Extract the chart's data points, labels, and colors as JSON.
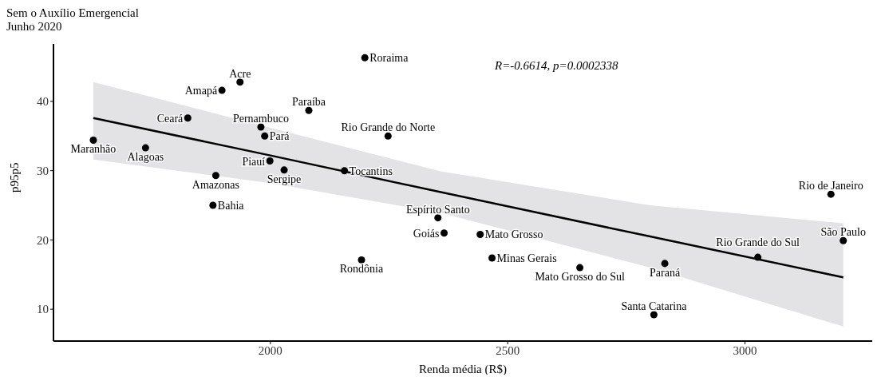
{
  "chart_data": {
    "type": "scatter",
    "title": "Sem o Auxílio Emergencial",
    "subtitle": "Junho 2020",
    "xlabel": "Renda média (R$)",
    "ylabel": "p95p5",
    "x": [
      1627,
      1737,
      1826,
      1898,
      1936,
      1980,
      1988,
      1999,
      2029,
      1885,
      1879,
      2081,
      2199,
      2248,
      2156,
      2353,
      2366,
      2442,
      2467,
      2192,
      2652,
      2831,
      2808,
      3027,
      3207,
      3181
    ],
    "series": [
      {
        "color": "#000000",
        "marker": "circle",
        "values": [
          34.4,
          33.3,
          37.6,
          41.6,
          42.8,
          36.3,
          35.0,
          31.4,
          30.1,
          29.3,
          25.0,
          38.7,
          46.3,
          35.0,
          30.0,
          23.2,
          21.0,
          20.8,
          17.4,
          17.1,
          16.0,
          16.6,
          9.2,
          17.5,
          19.9,
          26.6
        ]
      },
      {
        "type": "line",
        "color": "#000000",
        "marker": "none",
        "x": [
          1627,
          2000,
          2359,
          2800,
          3207
        ],
        "values": [
          37.6,
          32.2,
          26.9,
          20.5,
          14.6
        ],
        "lower": [
          31.6,
          28.2,
          23.9,
          16.0,
          7.5
        ],
        "upper": [
          42.8,
          36.2,
          29.9,
          25.0,
          22.4
        ]
      }
    ],
    "annotations": [
      "R=-0.6614, p=0.0002338",
      {
        "text": "Maranhão",
        "x": 1627,
        "y": 34.4
      },
      {
        "text": "Alagoas",
        "x": 1737,
        "y": 33.3
      },
      {
        "text": "Ceará",
        "x": 1826,
        "y": 37.6
      },
      {
        "text": "Amapá",
        "x": 1898,
        "y": 41.6
      },
      {
        "text": "Acre",
        "x": 1936,
        "y": 42.8
      },
      {
        "text": "Pernambuco",
        "x": 1980,
        "y": 36.3
      },
      {
        "text": "Pará",
        "x": 1988,
        "y": 35.0
      },
      {
        "text": "Piauí",
        "x": 1999,
        "y": 31.4
      },
      {
        "text": "Sergipe",
        "x": 2029,
        "y": 30.1
      },
      {
        "text": "Amazonas",
        "x": 1885,
        "y": 29.3
      },
      {
        "text": "Bahia",
        "x": 1879,
        "y": 25.0
      },
      {
        "text": "Paraíba",
        "x": 2081,
        "y": 38.7
      },
      {
        "text": "Roraima",
        "x": 2199,
        "y": 46.3
      },
      {
        "text": "Rio Grande do Norte",
        "x": 2248,
        "y": 35.0
      },
      {
        "text": "Tocantins",
        "x": 2156,
        "y": 30.0
      },
      {
        "text": "Espírito Santo",
        "x": 2353,
        "y": 23.2
      },
      {
        "text": "Goiás",
        "x": 2366,
        "y": 21.0
      },
      {
        "text": "Mato Grosso",
        "x": 2442,
        "y": 20.8
      },
      {
        "text": "Minas Gerais",
        "x": 2467,
        "y": 17.4
      },
      {
        "text": "Rondônia",
        "x": 2192,
        "y": 17.1
      },
      {
        "text": "Mato Grosso do Sul",
        "x": 2652,
        "y": 16.0
      },
      {
        "text": "Paraná",
        "x": 2831,
        "y": 16.6
      },
      {
        "text": "Santa Catarina",
        "x": 2808,
        "y": 9.2
      },
      {
        "text": "Rio Grande do Sul",
        "x": 3027,
        "y": 17.5
      },
      {
        "text": "São Paulo",
        "x": 3207,
        "y": 19.9
      },
      {
        "text": "Rio de Janeiro",
        "x": 3181,
        "y": 26.6
      }
    ],
    "xlim": [
      1543,
      3268
    ],
    "xticks": [
      2000,
      2500,
      3000
    ],
    "ylim": [
      5.4,
      48.3
    ],
    "yticks": [
      10,
      20,
      30,
      40
    ],
    "grid": false,
    "legend": false,
    "line_style": "solid"
  }
}
